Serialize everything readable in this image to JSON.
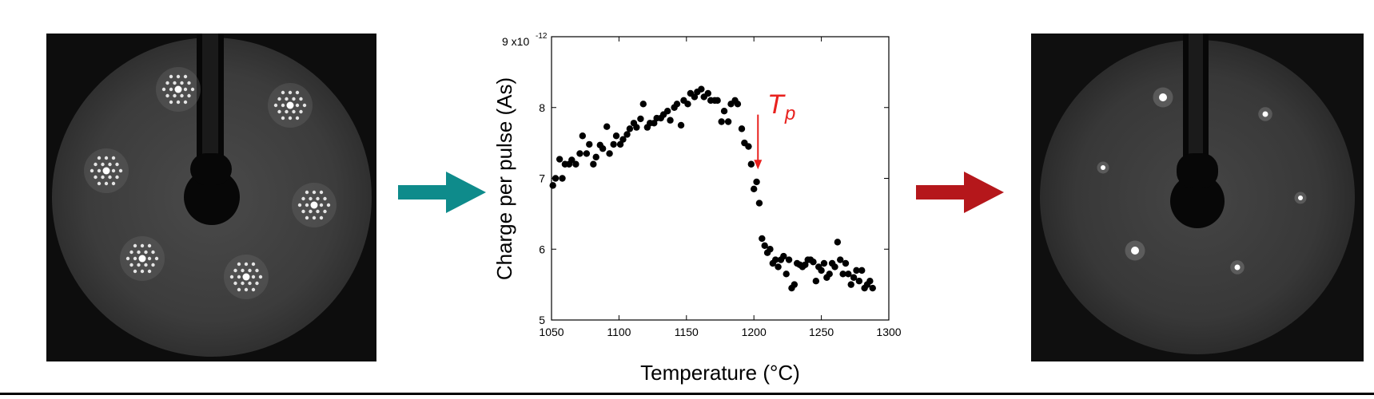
{
  "chart_data": {
    "type": "scatter",
    "xlabel": "Temperature (°C)",
    "ylabel": "Charge per pulse (As)",
    "xlim": [
      1050,
      1300
    ],
    "ylim": [
      5,
      9
    ],
    "y_scale_label": "9 x10",
    "y_scale_exponent": "-12",
    "xticks": [
      "1050",
      "1100",
      "1150",
      "1200",
      "1250",
      "1300"
    ],
    "yticks": [
      "5",
      "6",
      "7",
      "8"
    ],
    "annotation": {
      "label_main": "T",
      "label_sub": "p",
      "x": 1203,
      "y_from": 7.9,
      "y_to": 7.15,
      "color": "#e8211e"
    },
    "series": [
      {
        "x": [
          1051,
          1053,
          1056,
          1058,
          1060,
          1063,
          1065,
          1068,
          1071,
          1073,
          1076,
          1078,
          1081,
          1083,
          1086,
          1088,
          1091,
          1093,
          1096,
          1098,
          1101,
          1103,
          1106,
          1108,
          1111,
          1113,
          1116,
          1118,
          1121,
          1123,
          1126,
          1128,
          1131,
          1133,
          1136,
          1138,
          1141,
          1143,
          1146,
          1148,
          1151,
          1153,
          1156,
          1158,
          1161,
          1163,
          1166,
          1168,
          1171,
          1173,
          1176,
          1178,
          1181,
          1183,
          1186,
          1188,
          1191,
          1193,
          1196,
          1198,
          1200,
          1202,
          1204,
          1206,
          1208,
          1210,
          1212,
          1214,
          1216,
          1218,
          1220,
          1222,
          1224,
          1226,
          1228,
          1230,
          1232,
          1234,
          1236,
          1238,
          1240,
          1242,
          1244,
          1246,
          1248,
          1250,
          1252,
          1254,
          1256,
          1258,
          1260,
          1262,
          1264,
          1266,
          1268,
          1270,
          1272,
          1274,
          1276,
          1278,
          1280,
          1282,
          1284,
          1286,
          1288
        ],
        "y": [
          6.9,
          7.0,
          7.27,
          7.0,
          7.2,
          7.2,
          7.26,
          7.2,
          7.35,
          7.6,
          7.35,
          7.48,
          7.2,
          7.3,
          7.47,
          7.42,
          7.73,
          7.35,
          7.48,
          7.6,
          7.48,
          7.55,
          7.62,
          7.7,
          7.78,
          7.72,
          7.84,
          8.05,
          7.72,
          7.78,
          7.78,
          7.85,
          7.85,
          7.9,
          7.95,
          7.82,
          8.0,
          8.05,
          7.75,
          8.1,
          8.05,
          8.2,
          8.15,
          8.22,
          8.26,
          8.15,
          8.2,
          8.1,
          8.1,
          8.1,
          7.8,
          7.95,
          7.8,
          8.05,
          8.1,
          8.05,
          7.7,
          7.5,
          7.45,
          7.2,
          6.85,
          6.95,
          6.65,
          6.15,
          6.05,
          5.95,
          6.0,
          5.8,
          5.85,
          5.75,
          5.85,
          5.9,
          5.65,
          5.85,
          5.45,
          5.5,
          5.8,
          5.78,
          5.75,
          5.78,
          5.85,
          5.85,
          5.82,
          5.55,
          5.75,
          5.7,
          5.8,
          5.6,
          5.65,
          5.8,
          5.75,
          6.1,
          5.85,
          5.65,
          5.8,
          5.65,
          5.5,
          5.6,
          5.7,
          5.55,
          5.7,
          5.45,
          5.5,
          5.55,
          5.45
        ]
      }
    ],
    "colors": {
      "points": "#000000",
      "left_arrow": "#0e8b8b",
      "right_arrow": "#b5171b",
      "annotation": "#e8211e"
    }
  }
}
